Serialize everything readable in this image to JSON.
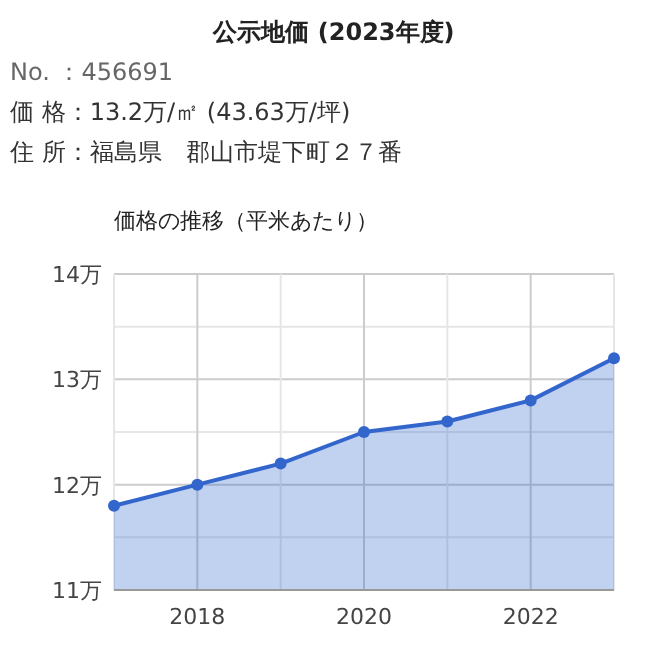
{
  "chart_data": {
    "type": "area",
    "title": "公示地価 (2023年度)",
    "annotations": [
      "No. ：456691",
      "価 格：13.2万/㎡ (43.63万/坪)",
      "住 所：福島県　郡山市堤下町２７番"
    ],
    "subtitle": "価格の推移（平米あたり）",
    "x": [
      2017,
      2018,
      2019,
      2020,
      2021,
      2022,
      2023
    ],
    "series": [
      {
        "color": "#3366cc",
        "values": [
          11.8,
          12.0,
          12.2,
          12.5,
          12.6,
          12.8,
          13.2
        ]
      }
    ],
    "xlim": [
      2017,
      2023
    ],
    "xticks": [
      {
        "value": 2017,
        "label": null
      },
      2018,
      {
        "value": 2019,
        "label": null
      },
      2020,
      {
        "value": 2021,
        "label": null
      },
      2022,
      {
        "value": 2023,
        "label": null
      }
    ],
    "ylim": [
      11,
      14
    ],
    "yticks": [
      {
        "value": 11,
        "label": "11万"
      },
      {
        "value": 11.5,
        "label": null
      },
      {
        "value": 12,
        "label": "12万"
      },
      {
        "value": 12.5,
        "label": null
      },
      {
        "value": 13,
        "label": "13万"
      },
      {
        "value": 13.5,
        "label": null
      },
      {
        "value": 14,
        "label": "14万"
      }
    ],
    "grid": true,
    "marker": "circle"
  }
}
